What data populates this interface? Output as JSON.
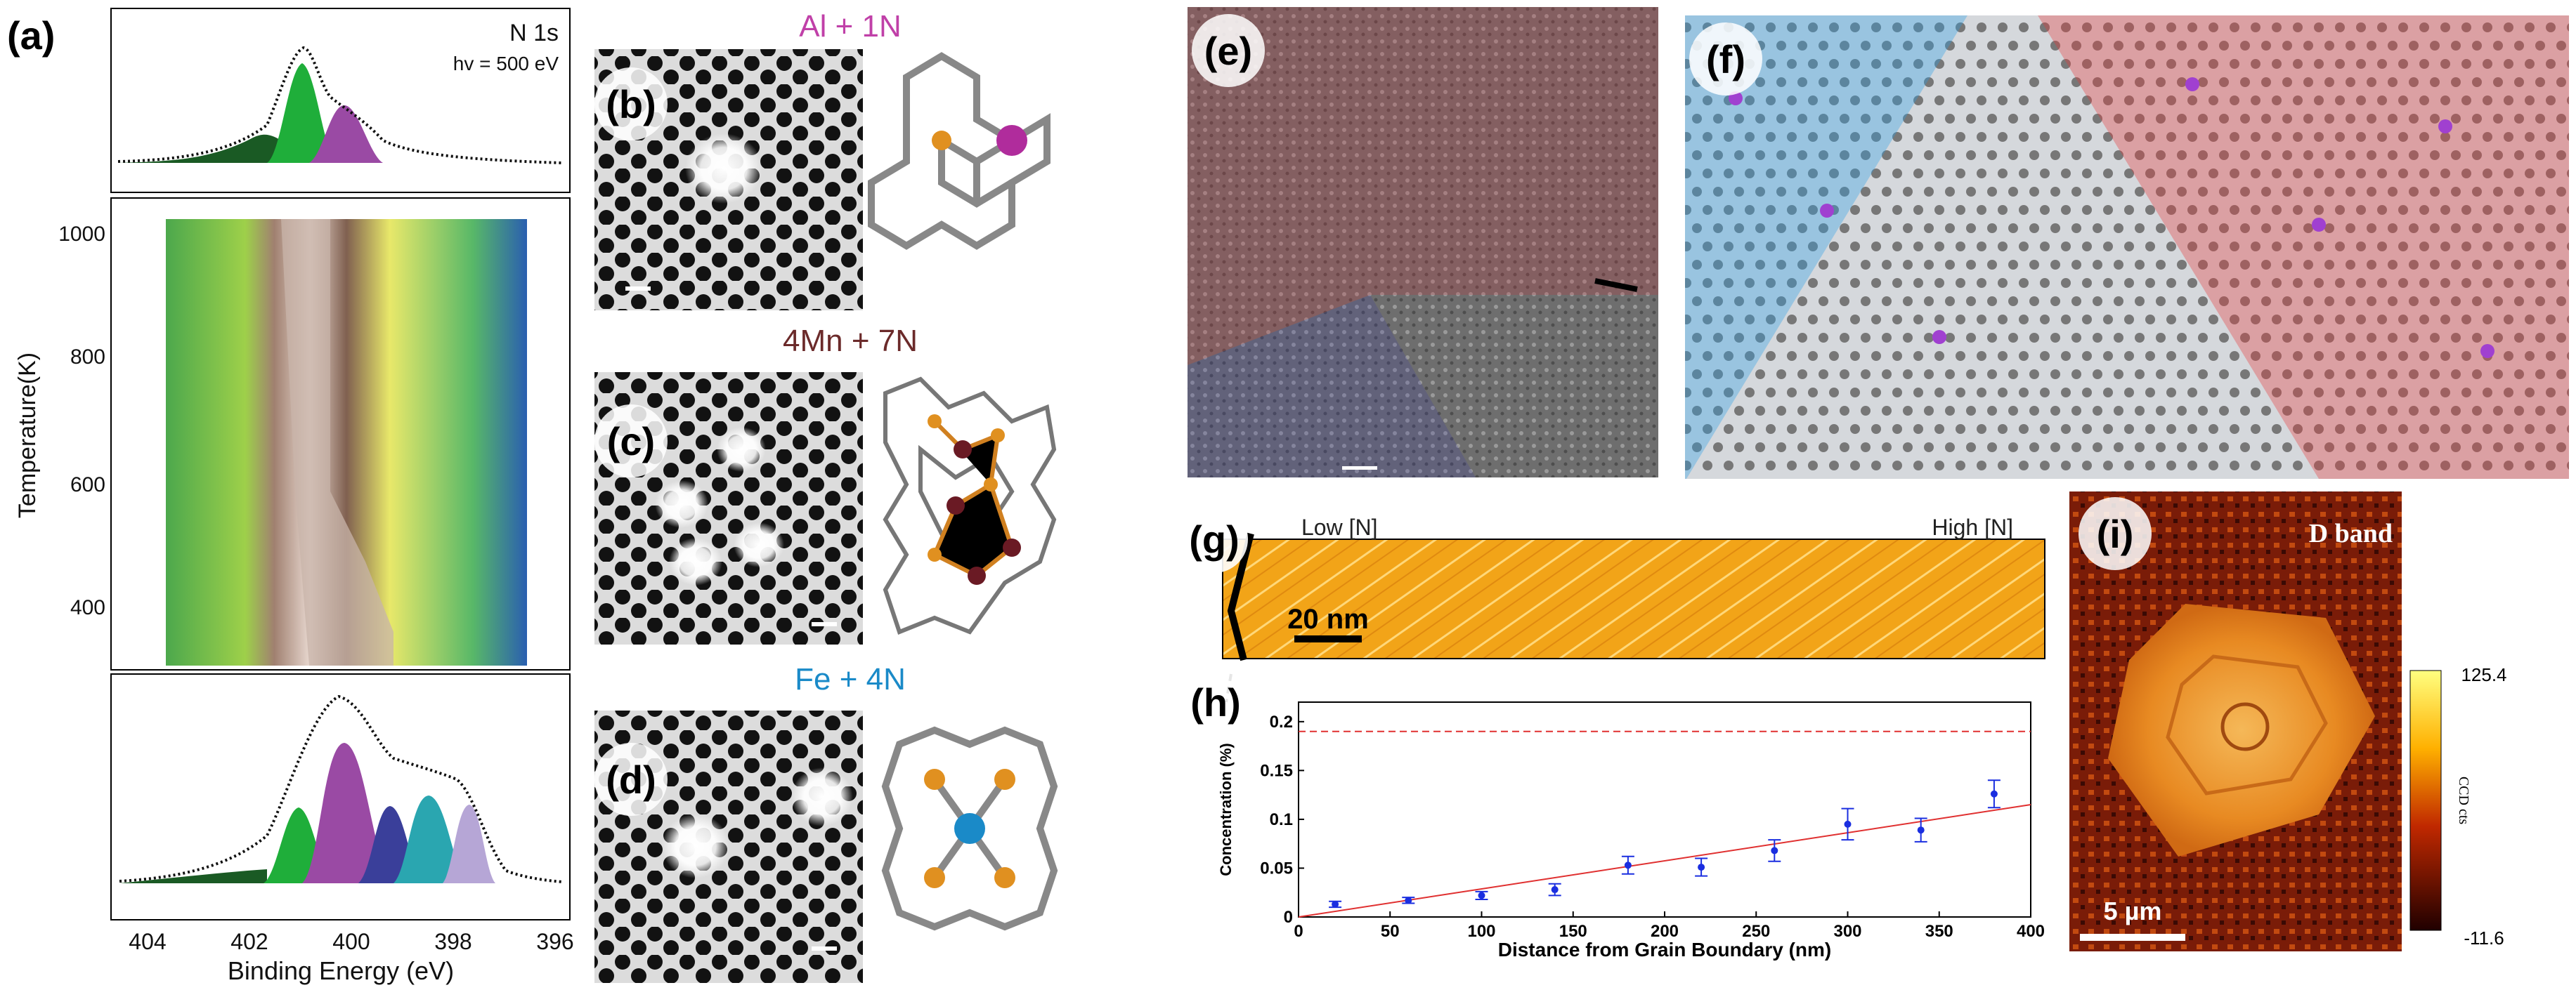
{
  "panels": {
    "a": {
      "label": "(a)",
      "top_spectrum": {
        "element": "N 1s",
        "photon_energy": "hv = 500 eV"
      },
      "heatmap": {
        "ylabel": "Temperature(K)",
        "yticks": [
          "1000",
          "800",
          "600",
          "400"
        ]
      },
      "bottom_spectrum": {
        "xlabel": "Binding Energy (eV)",
        "xticks": [
          "404",
          "402",
          "400",
          "398",
          "396"
        ]
      },
      "colors": {
        "green": "#1fae3a",
        "purple": "#9a4aa4",
        "navy": "#3a3f9a",
        "teal": "#2aa6b0",
        "lavender": "#b6a6d6",
        "darkgreen": "#1a5a24"
      }
    },
    "b": {
      "label": "(b)",
      "title": "Al + 1N",
      "title_color": "#c040a8"
    },
    "c": {
      "label": "(c)",
      "title": "4Mn + 7N",
      "title_color": "#6b2a2a"
    },
    "d": {
      "label": "(d)",
      "title": "Fe + 4N",
      "title_color": "#1a8ac8"
    },
    "e": {
      "label": "(e)"
    },
    "f": {
      "label": "(f)"
    },
    "g": {
      "label": "(g)",
      "low": "Low [N]",
      "high": "High [N]",
      "scalebar": "20 nm"
    },
    "h": {
      "label": "(h)"
    },
    "i": {
      "label": "(i)",
      "title": "D band",
      "scalebar": "5 µm",
      "colorbar_max": "125.4",
      "colorbar_min": "-11.6",
      "colorbar_label": "CCD cts"
    }
  },
  "chart_data": {
    "type": "scatter",
    "xlabel": "Distance from Grain Boundary (nm)",
    "ylabel": "Concentration (%)",
    "xlim": [
      0,
      400
    ],
    "ylim": [
      0,
      0.22
    ],
    "xticks": [
      0,
      50,
      100,
      150,
      200,
      250,
      300,
      350,
      400
    ],
    "yticks": [
      0,
      0.05,
      0.1,
      0.15,
      0.2
    ],
    "ytick_labels": [
      "0",
      "0.05",
      "0.1",
      "0.15",
      "0.2"
    ],
    "x": [
      20,
      60,
      100,
      140,
      180,
      220,
      260,
      300,
      340,
      380
    ],
    "values": [
      0.013,
      0.017,
      0.022,
      0.028,
      0.053,
      0.051,
      0.068,
      0.095,
      0.089,
      0.126
    ],
    "errors": [
      0.003,
      0.003,
      0.004,
      0.006,
      0.009,
      0.009,
      0.011,
      0.016,
      0.012,
      0.014
    ],
    "fit_line": {
      "x": [
        0,
        400
      ],
      "y": [
        0.0,
        0.115
      ],
      "color": "#e03030"
    },
    "reference_line": {
      "y": 0.19,
      "color": "#e03030",
      "style": "dashed"
    },
    "marker_color": "#1a2ee0"
  }
}
